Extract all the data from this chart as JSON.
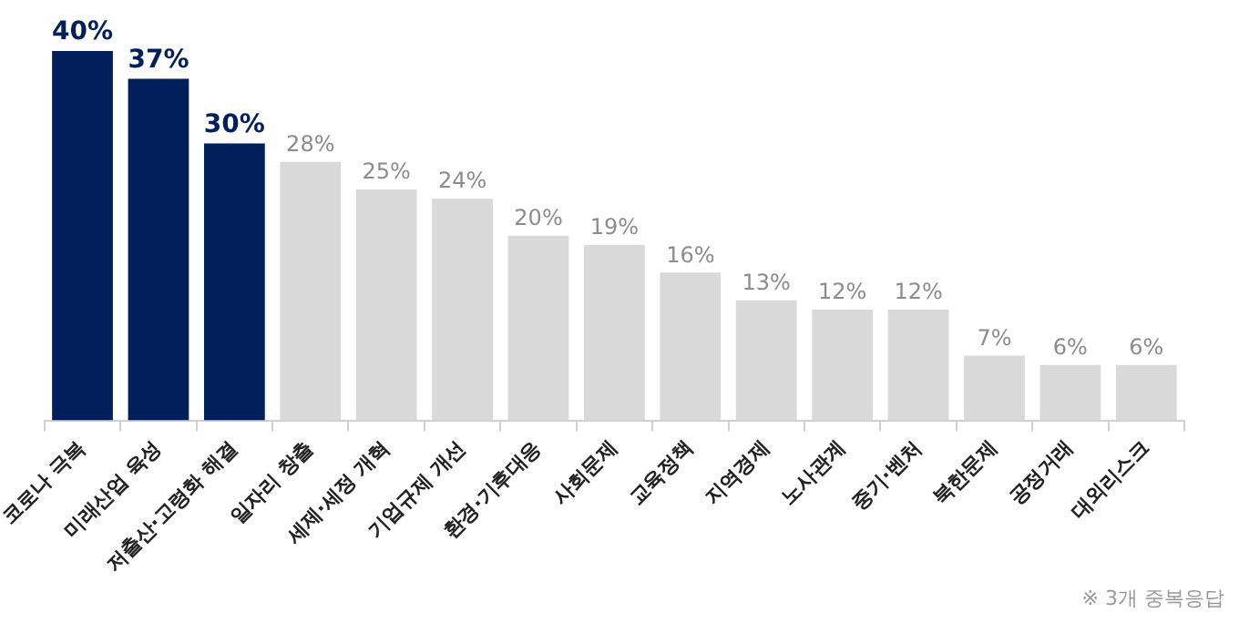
{
  "chart_data": {
    "type": "bar",
    "categories": [
      "코로나 극복",
      "미래산업 육성",
      "저출산·고령화 해결",
      "일자리 창출",
      "세제·세정 개혁",
      "기업규제 개선",
      "환경·기후대응",
      "사회문제",
      "교육정책",
      "지역경제",
      "노사관계",
      "중기·벤처",
      "북한문제",
      "공정거래",
      "대외리스크"
    ],
    "values": [
      40,
      37,
      30,
      28,
      25,
      24,
      20,
      19,
      16,
      13,
      12,
      12,
      7,
      6,
      6
    ],
    "colors": [
      "#001f5b",
      "#001f5b",
      "#001f5b",
      "#d9d9d9",
      "#d9d9d9",
      "#d9d9d9",
      "#d9d9d9",
      "#d9d9d9",
      "#d9d9d9",
      "#d9d9d9",
      "#d9d9d9",
      "#d9d9d9",
      "#d9d9d9",
      "#d9d9d9",
      "#d9d9d9"
    ],
    "value_labels": [
      "40%",
      "37%",
      "30%",
      "28%",
      "25%",
      "24%",
      "20%",
      "19%",
      "16%",
      "13%",
      "12%",
      "12%",
      "7%",
      "6%",
      "6%"
    ],
    "grid": false,
    "legend": false,
    "annotations": [
      "※ 3개 중복응답"
    ]
  }
}
